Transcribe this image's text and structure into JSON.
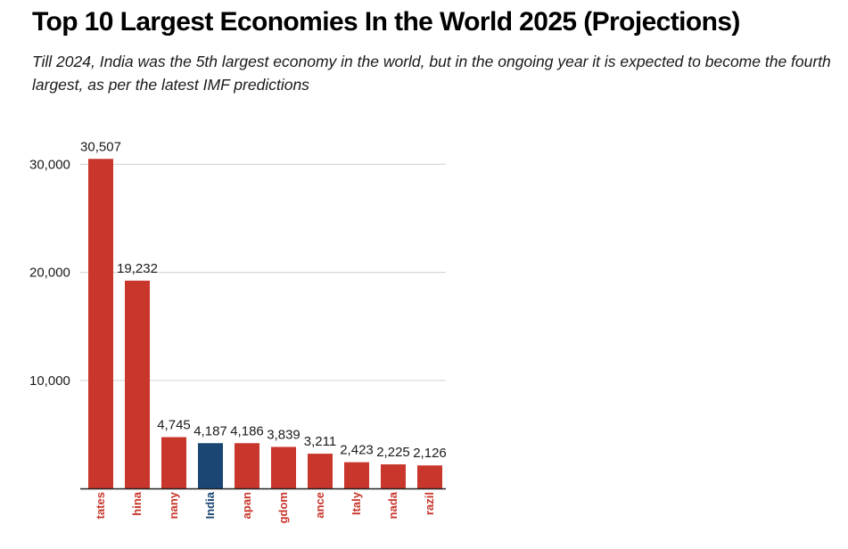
{
  "header": {
    "title": "Top 10 Largest Economies In the World 2025 (Projections)",
    "subtitle": "Till 2024, India was the 5th largest economy in the world, but in the ongoing year it is expected to become the fourth largest, as per the latest IMF predictions"
  },
  "chart_data": {
    "type": "bar",
    "title": "Top 10 Largest Economies In the World 2025 (Projections)",
    "subtitle": "Till 2024, India was the 5th largest economy in the world, but in the ongoing year it is expected to become the fourth largest, as per the latest IMF predictions",
    "categories": [
      "United States",
      "China",
      "Germany",
      "India",
      "Japan",
      "United Kingdom",
      "France",
      "Italy",
      "Canada",
      "Brazil"
    ],
    "category_labels_visible": [
      "tates",
      "hina",
      "nany",
      "India",
      "apan",
      "gdom",
      "ance",
      "Italy",
      "nada",
      "razil"
    ],
    "values": [
      30507,
      19232,
      4745,
      4187,
      4186,
      3839,
      3211,
      2423,
      2225,
      2126
    ],
    "value_labels": [
      "30,507",
      "19,232",
      "4,745",
      "4,187",
      "4,186",
      "3,839",
      "3,211",
      "2,423",
      "2,225",
      "2,126"
    ],
    "yticks": [
      10000,
      20000,
      30000
    ],
    "ytick_labels": [
      "10,000",
      "20,000",
      "30,000"
    ],
    "ylim": [
      0,
      32000
    ],
    "xlabel": "",
    "ylabel": "",
    "grid": true,
    "legend": "none",
    "colors": {
      "default": "#c8362c",
      "highlight": "#1b4674",
      "grid": "#d9d9d9",
      "axis": "#222222"
    },
    "highlight_category": "India"
  }
}
